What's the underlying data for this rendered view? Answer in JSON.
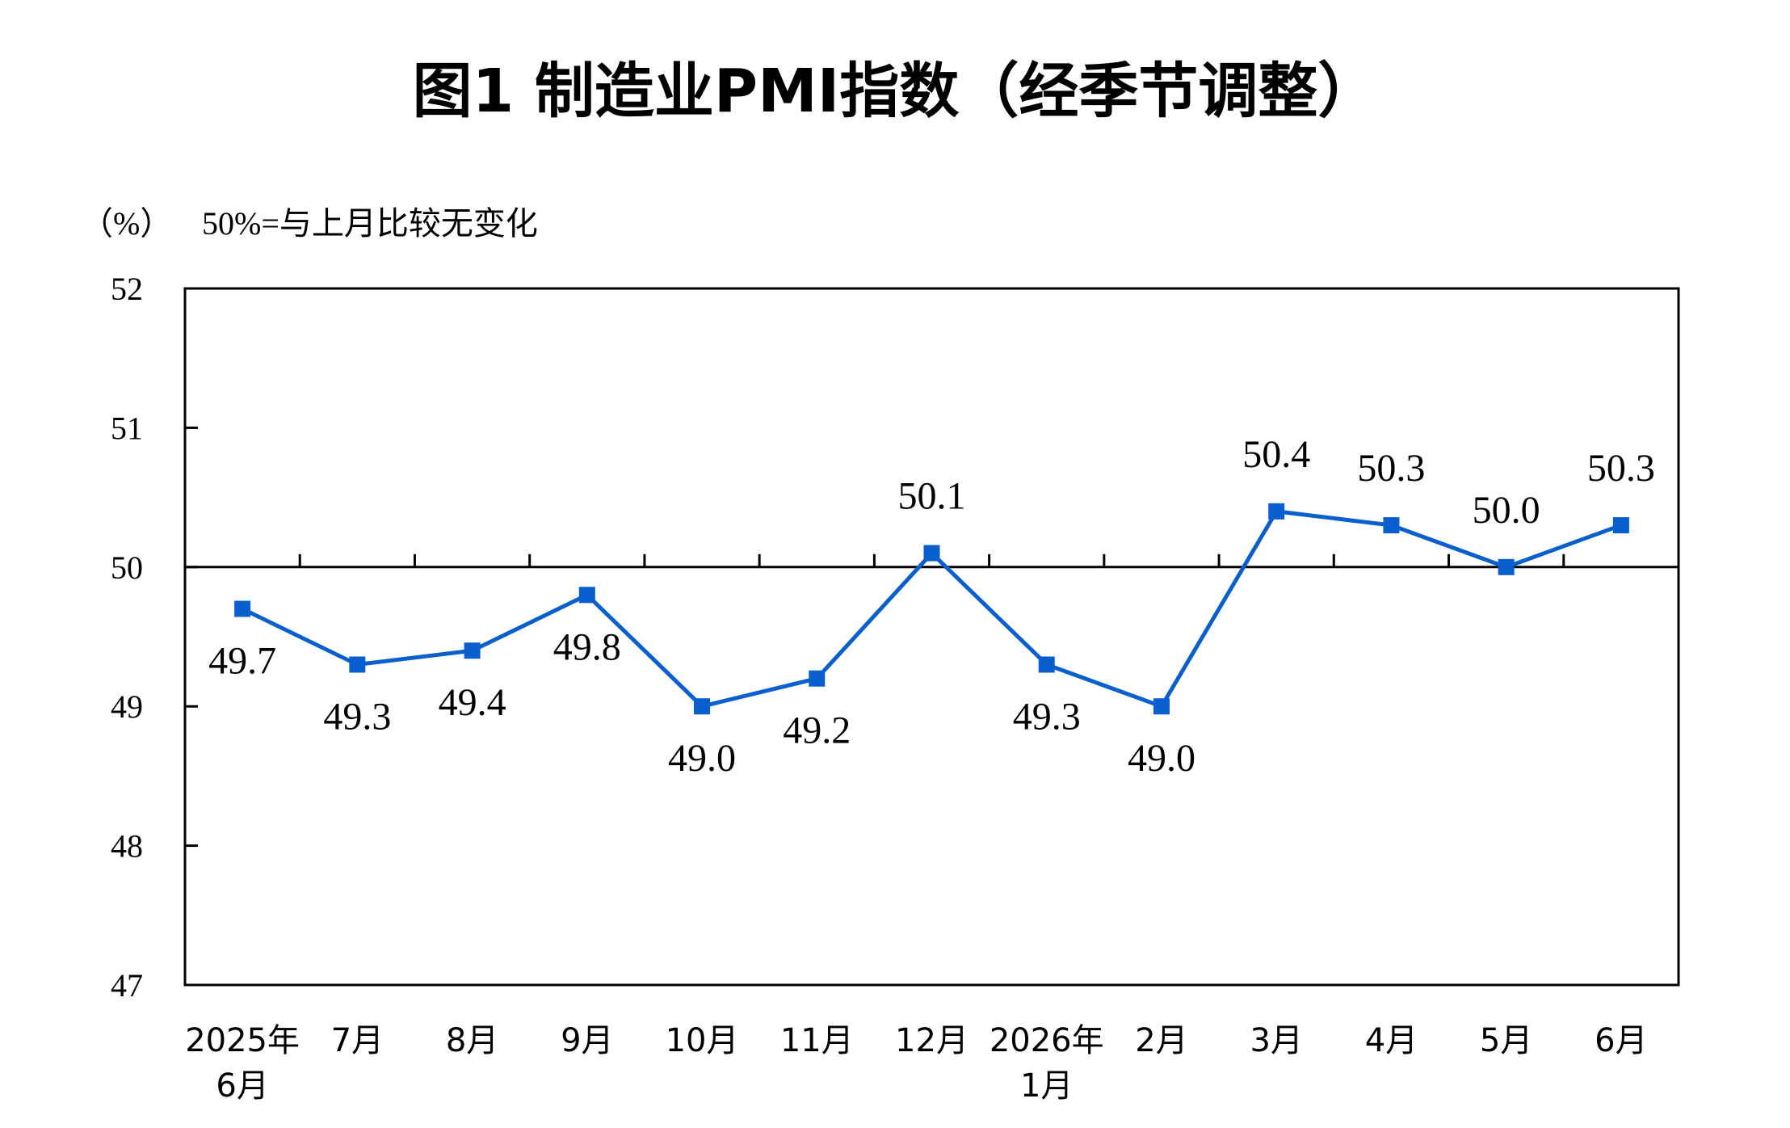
{
  "chart_data": {
    "type": "line",
    "title": "图1 制造业PMI指数（经季节调整）",
    "unit_label": "（%）",
    "note": "50%=与上月比较无变化",
    "ylim": [
      47,
      52
    ],
    "yticks": [
      "52",
      "51",
      "50",
      "49",
      "48",
      "47"
    ],
    "reference_line": 50,
    "grid": false,
    "categories": [
      {
        "line1": "2025年",
        "line2": "6月"
      },
      {
        "line1": "7月",
        "line2": ""
      },
      {
        "line1": "8月",
        "line2": ""
      },
      {
        "line1": "9月",
        "line2": ""
      },
      {
        "line1": "10月",
        "line2": ""
      },
      {
        "line1": "11月",
        "line2": ""
      },
      {
        "line1": "12月",
        "line2": ""
      },
      {
        "line1": "2026年",
        "line2": "1月"
      },
      {
        "line1": "2月",
        "line2": ""
      },
      {
        "line1": "3月",
        "line2": ""
      },
      {
        "line1": "4月",
        "line2": ""
      },
      {
        "line1": "5月",
        "line2": ""
      },
      {
        "line1": "6月",
        "line2": ""
      }
    ],
    "series": [
      {
        "values": [
          49.7,
          49.3,
          49.4,
          49.8,
          49.0,
          49.2,
          50.1,
          49.3,
          49.0,
          50.4,
          50.3,
          50.0,
          50.3
        ],
        "labels": [
          "49.7",
          "49.3",
          "49.4",
          "49.8",
          "49.0",
          "49.2",
          "50.1",
          "49.3",
          "49.0",
          "50.4",
          "50.3",
          "50.0",
          "50.3"
        ],
        "label_position": [
          "below",
          "below",
          "below",
          "below",
          "below",
          "below",
          "above",
          "below",
          "below",
          "above",
          "above",
          "above",
          "above"
        ],
        "color": "#0a5fcf",
        "marker": "square"
      }
    ],
    "colors": {
      "line": "#0a5fcf",
      "axis": "#000000",
      "text": "#000000"
    }
  }
}
